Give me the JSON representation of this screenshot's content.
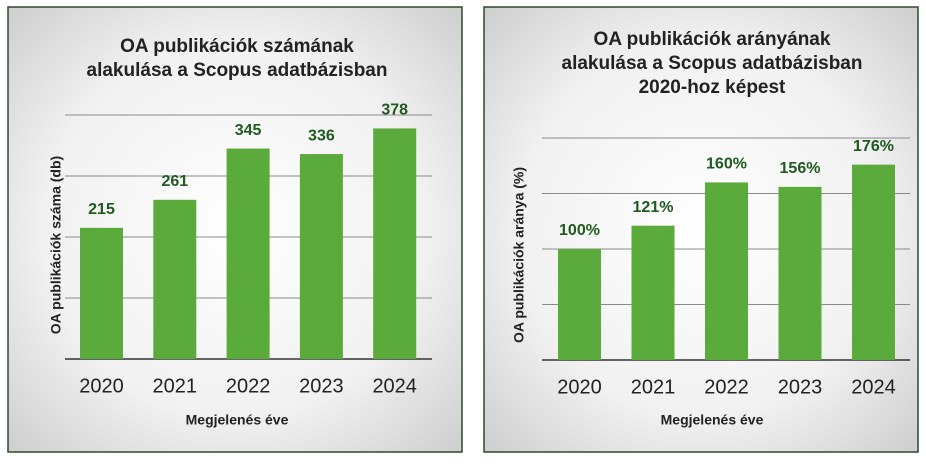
{
  "chart_data": [
    {
      "type": "bar",
      "title_lines": [
        "OA publikációk számának",
        "alakulása a Scopus adatbázisban"
      ],
      "xlabel": "Megjelenés éve",
      "ylabel": "OA publikációk száma (db)",
      "categories": [
        "2020",
        "2021",
        "2022",
        "2023",
        "2024"
      ],
      "values": [
        215,
        261,
        345,
        336,
        378
      ],
      "color": "#5aab3c",
      "ylim": [
        0,
        400
      ],
      "yticks": [
        0,
        100,
        200,
        300,
        400
      ],
      "grid": true
    },
    {
      "type": "bar",
      "title_lines": [
        "OA publikációk arányának",
        "alakulása a Scopus adatbázisban",
        "2020-hoz képest"
      ],
      "xlabel": "Megjelenés éve",
      "ylabel": "OA publikációk aránya (%)",
      "categories": [
        "2020",
        "2021",
        "2022",
        "2023",
        "2024"
      ],
      "values": [
        100,
        121,
        160,
        156,
        176
      ],
      "value_labels": [
        "100%",
        "121%",
        "160%",
        "156%",
        "176%"
      ],
      "color": "#5aab3c",
      "ylim": [
        0,
        200
      ],
      "yticks": [
        0,
        50,
        100,
        150,
        200
      ],
      "grid": true
    }
  ]
}
